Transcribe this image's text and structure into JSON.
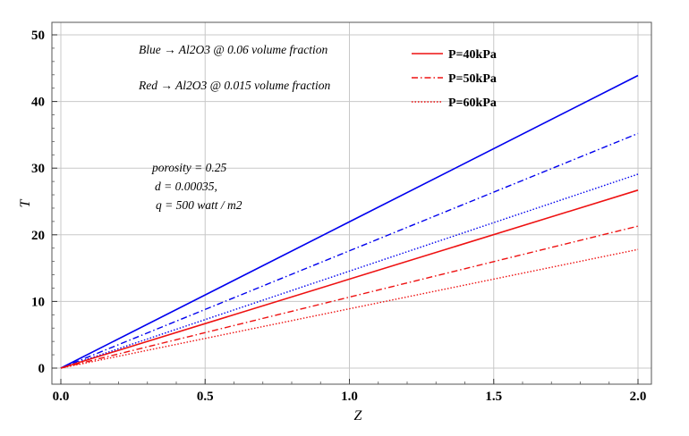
{
  "chart_data": {
    "type": "line",
    "title": "",
    "xlabel": "Z",
    "ylabel": "T",
    "xlim": [
      0,
      2.0
    ],
    "ylim": [
      0,
      50
    ],
    "grid": true,
    "x_ticks": [
      "0.0",
      "0.5",
      "1.0",
      "1.5",
      "2.0"
    ],
    "y_ticks": [
      "0",
      "10",
      "20",
      "30",
      "40",
      "50"
    ],
    "legend_position": "top-right",
    "legend": [
      {
        "label": "P=40kPa",
        "style": "solid"
      },
      {
        "label": "P=50kPa",
        "style": "dashdot"
      },
      {
        "label": "P=60kPa",
        "style": "dotted"
      }
    ],
    "annotations": [
      "Blue → Al2O3 @ 0.06 volume fraction",
      "Red → Al2O3 @ 0.015 volume fraction",
      "porosity = 0.25",
      "d = 0.00035,",
      "q = 500 watt / m2"
    ],
    "colors": {
      "blue": "#0000ee",
      "red": "#ee1111",
      "grid": "#c8c8c8"
    },
    "series": [
      {
        "color": "blue",
        "style": "solid",
        "x": [
          0,
          2.0
        ],
        "y": [
          0,
          43.9
        ]
      },
      {
        "color": "blue",
        "style": "dashdot",
        "x": [
          0,
          2.0
        ],
        "y": [
          0,
          35.2
        ]
      },
      {
        "color": "blue",
        "style": "dotted",
        "x": [
          0,
          2.0
        ],
        "y": [
          0,
          29.1
        ]
      },
      {
        "color": "red",
        "style": "solid",
        "x": [
          0,
          2.0
        ],
        "y": [
          0,
          26.7
        ]
      },
      {
        "color": "red",
        "style": "dashdot",
        "x": [
          0,
          2.0
        ],
        "y": [
          0,
          21.3
        ]
      },
      {
        "color": "red",
        "style": "dotted",
        "x": [
          0,
          2.0
        ],
        "y": [
          0,
          17.8
        ]
      }
    ]
  }
}
